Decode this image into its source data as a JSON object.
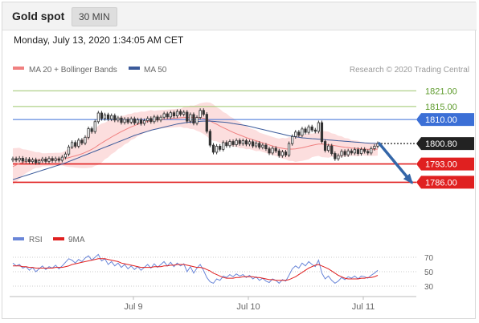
{
  "header": {
    "title": "Gold spot",
    "interval": "30 MIN",
    "timestamp": "Monday, July 13, 2020 1:34:05 AM CET"
  },
  "legend": {
    "ma20_label": "MA 20 + Bollinger Bands",
    "ma50_label": "MA 50",
    "copyright": "Research © 2020 Trading Central",
    "rsi_label": "RSI",
    "rsi_ma_label": "9MA"
  },
  "colors": {
    "ma20": "#f08080",
    "bollinger_fill": "#fbd3d3",
    "ma50": "#3b5a9a",
    "candle": "#333333",
    "resistance_green": "#9bc66b",
    "resistance_blue": "#3b6fd6",
    "support_red": "#e02020",
    "current_price": "#222222",
    "forecast_arrow": "#3466a8",
    "rsi": "#6a86d8",
    "rsi_ma": "#e02020"
  },
  "chart_data": [
    {
      "type": "candlestick",
      "title": "Gold spot",
      "x_ticks": [
        "Jul 9",
        "Jul 10",
        "Jul 11"
      ],
      "y_range": [
        1776,
        1826
      ],
      "levels": [
        {
          "value": 1821.0,
          "label": "1821.00",
          "kind": "resistance-2"
        },
        {
          "value": 1815.0,
          "label": "1815.00",
          "kind": "resistance-1"
        },
        {
          "value": 1810.0,
          "label": "1810.00",
          "kind": "pivot"
        },
        {
          "value": 1800.8,
          "label": "1800.80",
          "kind": "last-price"
        },
        {
          "value": 1793.0,
          "label": "1793.00",
          "kind": "support-1"
        },
        {
          "value": 1786.0,
          "label": "1786.00",
          "kind": "support-2"
        }
      ],
      "close": [
        1795,
        1794.5,
        1795.2,
        1794.1,
        1794.8,
        1793.9,
        1794.6,
        1793.5,
        1794.2,
        1794.9,
        1794.0,
        1795.1,
        1794.3,
        1795.0,
        1794.4,
        1795.6,
        1796.8,
        1799.5,
        1801.2,
        1799.8,
        1802.1,
        1801.0,
        1803.2,
        1806.5,
        1805.4,
        1809.2,
        1812.5,
        1810.4,
        1811.8,
        1810.2,
        1811.5,
        1809.8,
        1810.6,
        1808.9,
        1810.1,
        1809.0,
        1810.3,
        1808.7,
        1809.9,
        1808.5,
        1809.6,
        1810.4,
        1809.2,
        1811.0,
        1809.8,
        1810.9,
        1812.2,
        1811.0,
        1812.6,
        1811.4,
        1813.1,
        1812.0,
        1812.8,
        1809.4,
        1811.9,
        1808.6,
        1810.8,
        1813.5,
        1812.0,
        1805.5,
        1800.2,
        1797.5,
        1799.8,
        1798.6,
        1801.2,
        1800.0,
        1801.6,
        1800.4,
        1802.0,
        1800.8,
        1801.9,
        1800.6,
        1801.5,
        1799.9,
        1800.9,
        1799.4,
        1800.2,
        1798.8,
        1797.2,
        1799.0,
        1798.0,
        1796.2,
        1797.6,
        1796.4,
        1800.8,
        1803.5,
        1805.2,
        1804.0,
        1806.4,
        1805.1,
        1807.2,
        1806.0,
        1805.5,
        1808.8,
        1801.6,
        1798.2,
        1799.9,
        1797.0,
        1795.0,
        1796.2,
        1797.8,
        1796.5,
        1798.0,
        1797.2,
        1798.5,
        1797.0,
        1798.6,
        1797.8,
        1797.2,
        1798.9,
        1799.8,
        1800.8
      ],
      "ma20": [
        1792.0,
        1792.6,
        1793.2,
        1793.6,
        1794.0,
        1794.2,
        1794.4,
        1794.5,
        1794.5,
        1794.6,
        1794.6,
        1794.7,
        1794.7,
        1794.8,
        1794.8,
        1794.9,
        1795.1,
        1795.4,
        1795.8,
        1796.1,
        1796.5,
        1796.9,
        1797.4,
        1798.0,
        1798.6,
        1799.3,
        1800.2,
        1801.0,
        1801.8,
        1802.5,
        1803.3,
        1804.0,
        1804.7,
        1805.4,
        1806.0,
        1806.6,
        1807.2,
        1807.7,
        1808.2,
        1808.6,
        1809.0,
        1809.3,
        1809.6,
        1809.8,
        1810.0,
        1810.1,
        1810.2,
        1810.3,
        1810.4,
        1810.5,
        1810.6,
        1810.7,
        1810.8,
        1810.8,
        1810.9,
        1810.8,
        1810.7,
        1810.7,
        1810.5,
        1810.1,
        1809.5,
        1808.8,
        1808.2,
        1807.5,
        1806.9,
        1806.3,
        1805.7,
        1805.1,
        1804.6,
        1804.1,
        1803.6,
        1803.1,
        1802.7,
        1802.3,
        1801.9,
        1801.5,
        1801.1,
        1800.7,
        1800.3,
        1799.9,
        1799.5,
        1799.2,
        1799.0,
        1798.8,
        1798.7,
        1798.7,
        1798.8,
        1799.0,
        1799.2,
        1799.5,
        1799.8,
        1800.1,
        1800.4,
        1800.6,
        1800.6,
        1800.5,
        1800.4,
        1800.2,
        1800.0,
        1799.8,
        1799.6,
        1799.4,
        1799.3,
        1799.1,
        1799.0,
        1798.9,
        1798.8,
        1798.7,
        1798.6,
        1798.6,
        1798.6,
        1798.7
      ],
      "ma50": [
        1787.0,
        1787.4,
        1787.8,
        1788.2,
        1788.6,
        1789.0,
        1789.4,
        1789.8,
        1790.2,
        1790.6,
        1791.0,
        1791.4,
        1791.8,
        1792.2,
        1792.6,
        1793.0,
        1793.4,
        1793.9,
        1794.4,
        1794.9,
        1795.4,
        1795.9,
        1796.4,
        1796.9,
        1797.4,
        1797.9,
        1798.4,
        1798.9,
        1799.4,
        1799.9,
        1800.4,
        1800.9,
        1801.4,
        1801.9,
        1802.4,
        1802.9,
        1803.4,
        1803.9,
        1804.3,
        1804.7,
        1805.1,
        1805.5,
        1805.9,
        1806.2,
        1806.5,
        1806.8,
        1807.1,
        1807.4,
        1807.7,
        1808.0,
        1808.3,
        1808.5,
        1808.7,
        1808.9,
        1809.0,
        1809.1,
        1809.2,
        1809.3,
        1809.4,
        1809.4,
        1809.4,
        1809.3,
        1809.2,
        1809.1,
        1809.0,
        1808.9,
        1808.7,
        1808.5,
        1808.3,
        1808.1,
        1807.9,
        1807.7,
        1807.4,
        1807.1,
        1806.8,
        1806.5,
        1806.2,
        1805.9,
        1805.6,
        1805.3,
        1805.0,
        1804.7,
        1804.4,
        1804.1,
        1803.8,
        1803.6,
        1803.4,
        1803.2,
        1803.0,
        1802.9,
        1802.8,
        1802.7,
        1802.6,
        1802.5,
        1802.4,
        1802.3,
        1802.2,
        1802.1,
        1802.0,
        1801.9,
        1801.8,
        1801.7,
        1801.6,
        1801.5,
        1801.4,
        1801.3,
        1801.2,
        1801.1,
        1801.0,
        1800.9,
        1800.9,
        1800.8
      ],
      "bb_width": [
        14,
        13,
        12,
        10,
        9,
        8,
        7,
        6,
        6,
        5,
        5,
        5,
        5,
        5,
        5,
        5,
        6,
        7,
        8,
        9,
        10,
        11,
        12,
        13,
        14,
        14,
        15,
        15,
        14,
        14,
        13,
        13,
        12,
        12,
        11,
        11,
        10,
        10,
        9,
        9,
        8,
        8,
        8,
        7,
        7,
        7,
        7,
        7,
        7,
        7,
        7,
        7,
        8,
        8,
        9,
        9,
        10,
        11,
        12,
        13,
        14,
        14,
        13,
        13,
        12,
        12,
        11,
        11,
        10,
        10,
        9,
        9,
        8,
        8,
        8,
        7,
        7,
        7,
        7,
        7,
        7,
        7,
        8,
        8,
        9,
        9,
        10,
        10,
        10,
        10,
        10,
        9,
        9,
        9,
        10,
        10,
        10,
        9,
        9,
        8,
        8,
        7,
        7,
        6,
        6,
        6,
        5,
        5,
        5,
        5,
        5,
        5
      ],
      "forecast": {
        "from": 1800.8,
        "to": 1786.0
      }
    },
    {
      "type": "line",
      "title": "RSI",
      "y_ticks": [
        70,
        50,
        30
      ],
      "y_range": [
        20,
        80
      ],
      "series": [
        {
          "name": "RSI",
          "values": [
            62,
            58,
            60,
            55,
            57,
            52,
            56,
            50,
            54,
            58,
            53,
            57,
            55,
            59,
            54,
            58,
            63,
            68,
            66,
            62,
            67,
            64,
            69,
            72,
            66,
            70,
            74,
            65,
            68,
            60,
            64,
            58,
            62,
            56,
            60,
            54,
            58,
            53,
            57,
            52,
            56,
            60,
            55,
            61,
            56,
            60,
            64,
            58,
            63,
            57,
            62,
            58,
            61,
            50,
            57,
            48,
            55,
            60,
            52,
            42,
            36,
            34,
            40,
            38,
            44,
            42,
            46,
            43,
            47,
            44,
            46,
            42,
            45,
            40,
            43,
            38,
            41,
            37,
            35,
            40,
            38,
            34,
            39,
            37,
            45,
            54,
            58,
            55,
            62,
            58,
            64,
            60,
            57,
            66,
            48,
            40,
            44,
            38,
            34,
            37,
            42,
            39,
            43,
            41,
            44,
            40,
            44,
            43,
            41,
            45,
            48,
            52
          ]
        },
        {
          "name": "9MA",
          "values": [
            58,
            58,
            58,
            57,
            57,
            56,
            56,
            55,
            55,
            55,
            55,
            55,
            55,
            56,
            56,
            56,
            57,
            58,
            60,
            61,
            62,
            63,
            64,
            65,
            66,
            67,
            68,
            68,
            68,
            67,
            66,
            65,
            64,
            62,
            61,
            60,
            59,
            58,
            57,
            56,
            56,
            56,
            56,
            57,
            57,
            57,
            58,
            58,
            59,
            59,
            60,
            60,
            60,
            59,
            58,
            57,
            56,
            56,
            55,
            53,
            51,
            48,
            46,
            44,
            42,
            41,
            41,
            41,
            42,
            42,
            43,
            43,
            43,
            43,
            42,
            42,
            41,
            40,
            39,
            39,
            38,
            38,
            38,
            38,
            39,
            41,
            43,
            46,
            49,
            52,
            55,
            57,
            59,
            60,
            58,
            56,
            54,
            51,
            48,
            45,
            43,
            41,
            40,
            40,
            40,
            40,
            41,
            41,
            42,
            42,
            43,
            45
          ]
        }
      ]
    }
  ]
}
